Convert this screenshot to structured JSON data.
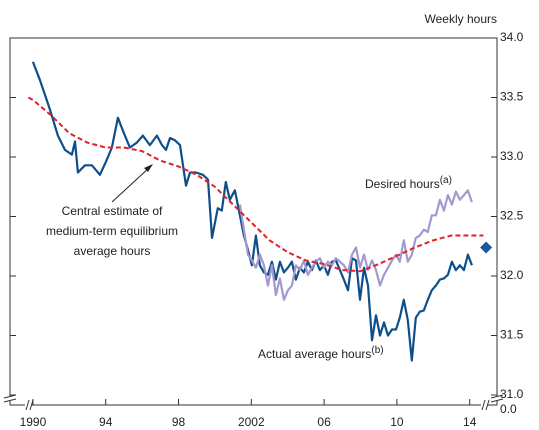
{
  "chart_data": {
    "type": "line",
    "y_axis_label": "Weekly hours",
    "xlim": [
      1988.74,
      2015.5
    ],
    "ylim": [
      31,
      34
    ],
    "xticks": [
      {
        "value": 1990,
        "label": "1990"
      },
      {
        "value": 1994,
        "label": "94"
      },
      {
        "value": 1998,
        "label": "98"
      },
      {
        "value": 2002,
        "label": "2002"
      },
      {
        "value": 2006,
        "label": "06"
      },
      {
        "value": 2010,
        "label": "10"
      },
      {
        "value": 2014,
        "label": "14"
      }
    ],
    "yticks": [
      {
        "value": 31,
        "label": "31.0"
      },
      {
        "value": 31.5,
        "label": "31.5"
      },
      {
        "value": 32,
        "label": "32.0"
      },
      {
        "value": 32.5,
        "label": "32.5"
      },
      {
        "value": 33,
        "label": "33.0"
      },
      {
        "value": 33.5,
        "label": "33.5"
      },
      {
        "value": 34,
        "label": "34.0"
      }
    ],
    "axis_break_tick": {
      "value": 0,
      "label": "0.0"
    },
    "series": [
      {
        "name": "Actual average hours",
        "name_sup": "(b)",
        "color": "#0d4f8b",
        "dashed": false,
        "x": [
          1990.0,
          1990.38,
          1990.93,
          1991.37,
          1991.76,
          1992.14,
          1992.31,
          1992.47,
          1992.86,
          1993.24,
          1993.68,
          1994.01,
          1994.34,
          1994.67,
          1995.0,
          1995.33,
          1995.71,
          1996.04,
          1996.43,
          1996.81,
          1997.09,
          1997.31,
          1997.53,
          1997.8,
          1998.08,
          1998.41,
          1998.63,
          1998.96,
          1999.34,
          1999.62,
          1999.84,
          2000.16,
          2000.38,
          2000.6,
          2000.82,
          2001.1,
          2001.37,
          2001.59,
          2001.81,
          2002.03,
          2002.25,
          2002.47,
          2002.69,
          2002.91,
          2003.13,
          2003.35,
          2003.57,
          2003.79,
          2004.01,
          2004.23,
          2004.45,
          2004.67,
          2004.89,
          2005.11,
          2005.33,
          2005.55,
          2005.77,
          2005.99,
          2006.21,
          2006.43,
          2006.65,
          2006.87,
          2007.09,
          2007.31,
          2007.53,
          2007.75,
          2007.97,
          2008.19,
          2008.41,
          2008.63,
          2008.85,
          2009.07,
          2009.29,
          2009.51,
          2009.73,
          2009.95,
          2010.16,
          2010.38,
          2010.6,
          2010.82,
          2011.04,
          2011.26,
          2011.48,
          2011.7,
          2011.92,
          2012.14,
          2012.36,
          2012.58,
          2012.8,
          2013.02,
          2013.24,
          2013.46,
          2013.68,
          2013.9,
          2014.12
        ],
        "values": [
          33.8,
          33.65,
          33.4,
          33.18,
          33.06,
          33.02,
          33.13,
          32.87,
          32.93,
          32.93,
          32.85,
          32.96,
          33.08,
          33.33,
          33.2,
          33.08,
          33.12,
          33.18,
          33.1,
          33.18,
          33.1,
          33.06,
          33.16,
          33.14,
          33.1,
          32.76,
          32.87,
          32.87,
          32.85,
          32.81,
          32.32,
          32.57,
          32.55,
          32.79,
          32.64,
          32.72,
          32.51,
          32.34,
          32.22,
          32.09,
          32.34,
          32.09,
          32.03,
          32.01,
          32.12,
          31.97,
          32.12,
          32.03,
          32.07,
          32.12,
          31.97,
          32.07,
          32.03,
          32.12,
          32.05,
          32.13,
          32.05,
          32.09,
          32.01,
          32.12,
          32.13,
          32.05,
          31.97,
          31.88,
          32.15,
          32.13,
          31.8,
          32.07,
          31.92,
          31.46,
          31.67,
          31.5,
          31.61,
          31.5,
          31.55,
          31.55,
          31.65,
          31.8,
          31.63,
          31.29,
          31.65,
          31.7,
          31.71,
          31.8,
          31.88,
          31.92,
          31.97,
          31.98,
          32.01,
          32.12,
          32.05,
          32.09,
          32.05,
          32.18,
          32.09
        ]
      },
      {
        "name": "Desired hours",
        "name_sup": "(a)",
        "color": "#a598d0",
        "dashed": false,
        "x": [
          2001.37,
          2001.59,
          2001.81,
          2002.03,
          2002.25,
          2002.47,
          2002.69,
          2002.91,
          2003.13,
          2003.35,
          2003.57,
          2003.79,
          2004.01,
          2004.23,
          2004.45,
          2004.67,
          2004.89,
          2005.11,
          2005.33,
          2005.55,
          2005.77,
          2005.99,
          2006.21,
          2006.43,
          2006.65,
          2006.87,
          2007.09,
          2007.31,
          2007.53,
          2007.75,
          2007.97,
          2008.19,
          2008.41,
          2008.63,
          2008.85,
          2009.07,
          2009.29,
          2009.51,
          2009.73,
          2009.95,
          2010.16,
          2010.38,
          2010.6,
          2010.82,
          2011.04,
          2011.26,
          2011.48,
          2011.7,
          2011.92,
          2012.14,
          2012.36,
          2012.58,
          2012.8,
          2013.02,
          2013.24,
          2013.46,
          2013.68,
          2013.9,
          2014.12
        ],
        "values": [
          32.6,
          32.39,
          32.18,
          32.13,
          32.07,
          32.18,
          32.09,
          31.92,
          32.09,
          31.84,
          31.98,
          31.8,
          31.88,
          31.92,
          32.09,
          32.05,
          32.13,
          32.01,
          32.07,
          32.12,
          32.15,
          32.07,
          32.12,
          32.09,
          32.15,
          32.12,
          32.09,
          32.03,
          32.18,
          32.24,
          32.07,
          32.18,
          32.05,
          32.13,
          32.05,
          31.92,
          32.01,
          32.07,
          32.13,
          32.18,
          32.12,
          32.3,
          32.12,
          32.18,
          32.32,
          32.34,
          32.39,
          32.37,
          32.51,
          32.51,
          32.64,
          32.55,
          32.68,
          32.6,
          32.71,
          32.64,
          32.68,
          32.72,
          32.62
        ]
      },
      {
        "color": "#e0202a",
        "dashed": true,
        "x": [
          1989.75,
          1990,
          1991,
          1992,
          1993,
          1994,
          1995,
          1996,
          1997,
          1998,
          1999,
          2000,
          2001,
          2002,
          2003,
          2004,
          2005,
          2006,
          2007,
          2008,
          2009,
          2010,
          2011,
          2012,
          2013,
          2014,
          2014.75
        ],
        "values": [
          33.5,
          33.48,
          33.35,
          33.2,
          33.12,
          33.08,
          33.08,
          33.05,
          32.97,
          32.92,
          32.85,
          32.75,
          32.6,
          32.45,
          32.3,
          32.2,
          32.13,
          32.1,
          32.05,
          32.04,
          32.1,
          32.17,
          32.24,
          32.3,
          32.34,
          32.34,
          32.34
        ]
      }
    ],
    "point": {
      "x": 2014.9,
      "value": 32.24,
      "color": "#1a5a9a"
    },
    "annotation": [
      "Central estimate of",
      "medium-term equilibrium",
      "average hours"
    ]
  }
}
